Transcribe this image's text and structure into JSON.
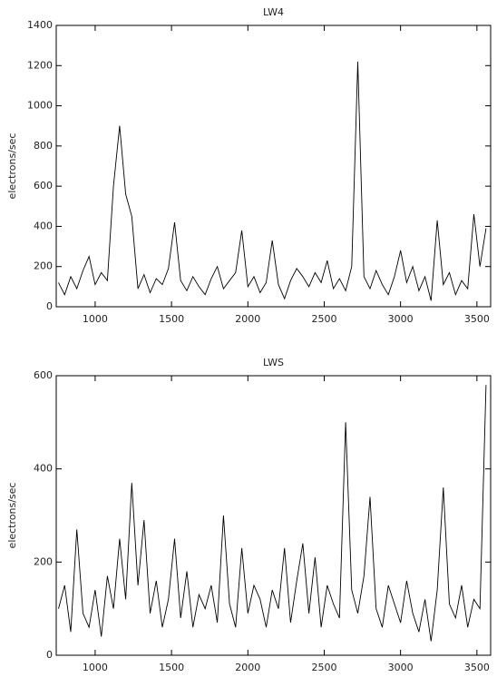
{
  "chart_data": [
    {
      "type": "line",
      "title": "LW4",
      "ylabel": "electrons/sec",
      "x": [
        760,
        800,
        840,
        880,
        920,
        960,
        1000,
        1040,
        1080,
        1120,
        1160,
        1200,
        1240,
        1280,
        1320,
        1360,
        1400,
        1440,
        1480,
        1520,
        1560,
        1600,
        1640,
        1680,
        1720,
        1760,
        1800,
        1840,
        1880,
        1920,
        1960,
        2000,
        2040,
        2080,
        2120,
        2160,
        2200,
        2240,
        2280,
        2320,
        2360,
        2400,
        2440,
        2480,
        2520,
        2560,
        2600,
        2640,
        2680,
        2720,
        2760,
        2800,
        2840,
        2880,
        2920,
        2960,
        3000,
        3040,
        3080,
        3120,
        3160,
        3200,
        3240,
        3280,
        3320,
        3360,
        3400,
        3440,
        3480,
        3520,
        3560
      ],
      "series": [
        {
          "name": "LW4",
          "color": "#000000",
          "values": [
            120,
            60,
            150,
            90,
            180,
            250,
            110,
            170,
            130,
            600,
            900,
            560,
            450,
            90,
            160,
            70,
            140,
            110,
            190,
            420,
            130,
            80,
            150,
            100,
            60,
            140,
            200,
            90,
            130,
            170,
            380,
            100,
            150,
            70,
            120,
            330,
            110,
            40,
            130,
            190,
            150,
            100,
            170,
            120,
            230,
            90,
            140,
            80,
            200,
            1220,
            150,
            90,
            180,
            110,
            60,
            150,
            280,
            120,
            200,
            80,
            150,
            30,
            430,
            110,
            170,
            60,
            130,
            90,
            460,
            200,
            390
          ]
        }
      ],
      "xlim": [
        745,
        3590
      ],
      "xticks": [
        1000,
        1500,
        2000,
        2500,
        3000,
        3500
      ],
      "ylim": [
        0,
        1400
      ],
      "yticks": [
        0,
        200,
        400,
        600,
        800,
        1000,
        1200,
        1400
      ]
    },
    {
      "type": "line",
      "title": "LWS",
      "ylabel": "electrons/sec",
      "x": [
        760,
        800,
        840,
        880,
        920,
        960,
        1000,
        1040,
        1080,
        1120,
        1160,
        1200,
        1240,
        1280,
        1320,
        1360,
        1400,
        1440,
        1480,
        1520,
        1560,
        1600,
        1640,
        1680,
        1720,
        1760,
        1800,
        1840,
        1880,
        1920,
        1960,
        2000,
        2040,
        2080,
        2120,
        2160,
        2200,
        2240,
        2280,
        2320,
        2360,
        2400,
        2440,
        2480,
        2520,
        2560,
        2600,
        2640,
        2680,
        2720,
        2760,
        2800,
        2840,
        2880,
        2920,
        2960,
        3000,
        3040,
        3080,
        3120,
        3160,
        3200,
        3240,
        3280,
        3320,
        3360,
        3400,
        3440,
        3480,
        3520,
        3560
      ],
      "series": [
        {
          "name": "LWS",
          "color": "#000000",
          "values": [
            100,
            150,
            50,
            270,
            90,
            60,
            140,
            40,
            170,
            100,
            250,
            120,
            370,
            150,
            290,
            90,
            160,
            60,
            120,
            250,
            80,
            180,
            60,
            130,
            100,
            150,
            70,
            300,
            110,
            60,
            230,
            90,
            150,
            120,
            60,
            140,
            100,
            230,
            70,
            160,
            240,
            90,
            210,
            60,
            150,
            110,
            80,
            500,
            140,
            90,
            170,
            340,
            100,
            60,
            150,
            110,
            70,
            160,
            90,
            50,
            120,
            30,
            140,
            360,
            110,
            80,
            150,
            60,
            120,
            100,
            580
          ]
        }
      ],
      "xlim": [
        745,
        3590
      ],
      "xticks": [
        1000,
        1500,
        2000,
        2500,
        3000,
        3500
      ],
      "ylim": [
        0,
        600
      ],
      "yticks": [
        0,
        200,
        400,
        600
      ]
    }
  ]
}
